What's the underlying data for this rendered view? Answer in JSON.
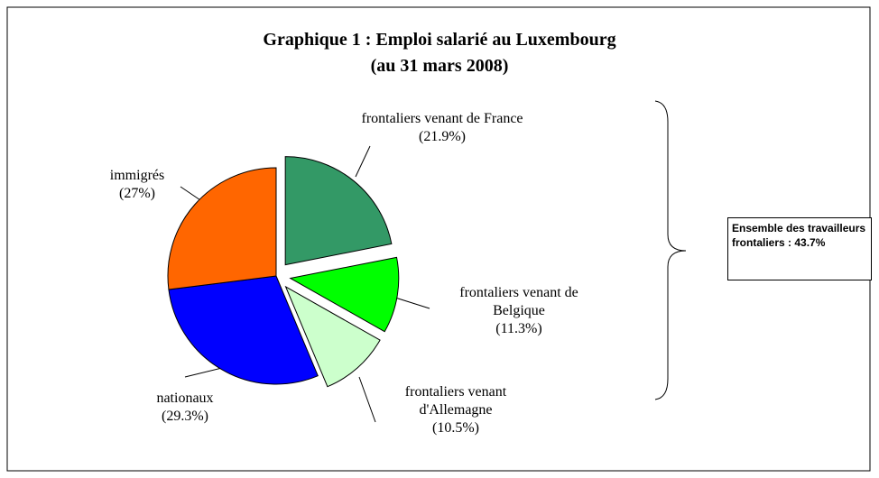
{
  "chart_data": {
    "type": "pie",
    "title": "Graphique 1 : Emploi salarié au Luxembourg",
    "subtitle": "(au 31 mars 2008)",
    "categories": [
      "frontaliers venant de France",
      "frontaliers venant de Belgique",
      "frontaliers venant d'Allemagne",
      "nationaux",
      "immigrés"
    ],
    "values": [
      21.9,
      11.3,
      10.5,
      29.3,
      27
    ],
    "value_labels": [
      "(21.9%)",
      "(11.3%)",
      "(10.5%)",
      "(29.3%)",
      "(27%)"
    ],
    "colors": [
      "#339966",
      "#00ff00",
      "#ccffcc",
      "#0000ff",
      "#ff6600"
    ],
    "explode": [
      true,
      true,
      true,
      false,
      false
    ],
    "annotation": "Ensemble des travailleurs frontaliers : 43.7%"
  }
}
